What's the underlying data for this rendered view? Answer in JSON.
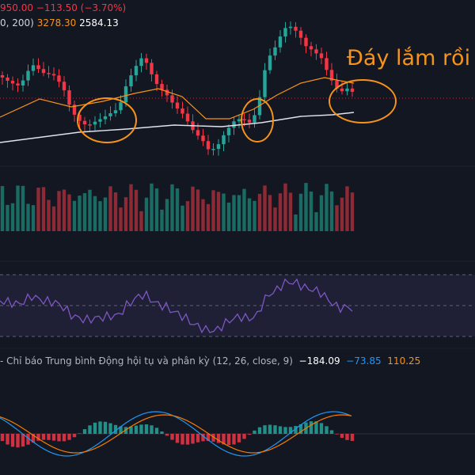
{
  "colors": {
    "background": "#131722",
    "up": "#26a69a",
    "down": "#f23645",
    "ma_orange": "#f7931a",
    "ma_white": "#e0e3eb",
    "rsi_line": "#7e57c2",
    "macd_line": "#2196f3",
    "signal_line": "#f57c00"
  },
  "header": {
    "price_change": "950.00  −113.50 (−3.70%)",
    "ma_params": "0, 200)",
    "ma1_value": "3278.30",
    "ma2_value": "2584.13"
  },
  "annotation": {
    "text": "Đáy lắm rồi"
  },
  "macd_legend": {
    "label": "Chỉ báo Trung bình Động hội tụ và phân kỳ (12, 26, close, 9)",
    "histogram_value": "−184.09",
    "macd_value": "−73.85",
    "signal_value": "110.25"
  }
}
